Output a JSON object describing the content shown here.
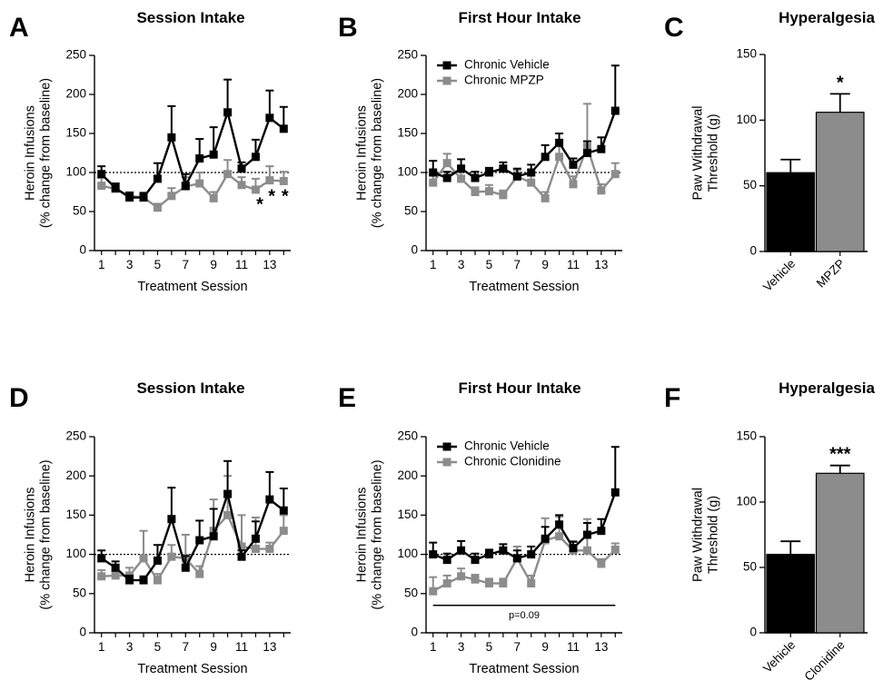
{
  "colors": {
    "vehicle": "#000000",
    "drug": "#8c8c8c"
  },
  "chart_data": [
    {
      "id": "A",
      "letter": "A",
      "type": "line",
      "title": "Session Intake",
      "ylabel": "Heroin Infusions\n(% change from baseline)",
      "xlabel": "Treatment Session",
      "ylim": [
        0,
        250
      ],
      "yticks": [
        0,
        50,
        100,
        150,
        200,
        250
      ],
      "xlim": [
        0.5,
        14.5
      ],
      "xticks": [
        1,
        3,
        5,
        7,
        9,
        11,
        13
      ],
      "reference_line": 100,
      "legend": null,
      "series": [
        {
          "key": "vehicle",
          "x": [
            1,
            2,
            3,
            4,
            5,
            6,
            7,
            8,
            9,
            10,
            11,
            12,
            13,
            14
          ],
          "y": [
            98,
            80,
            68,
            68,
            92,
            145,
            83,
            118,
            123,
            177,
            105,
            120,
            170,
            156
          ],
          "err": [
            10,
            6,
            6,
            6,
            20,
            40,
            15,
            25,
            35,
            42,
            8,
            22,
            35,
            28
          ]
        },
        {
          "key": "drug",
          "x": [
            1,
            2,
            3,
            4,
            5,
            6,
            7,
            8,
            9,
            10,
            11,
            12,
            13,
            14
          ],
          "y": [
            83,
            79,
            70,
            68,
            55,
            70,
            82,
            86,
            67,
            98,
            84,
            78,
            90,
            89
          ],
          "err": [
            10,
            7,
            5,
            5,
            5,
            10,
            12,
            14,
            8,
            18,
            10,
            14,
            18,
            12
          ]
        }
      ],
      "annotations": [
        {
          "text": "*",
          "x": 12.3,
          "y": 52
        },
        {
          "text": "*",
          "x": 13.15,
          "y": 62
        },
        {
          "text": "*",
          "x": 14.1,
          "y": 62
        }
      ]
    },
    {
      "id": "B",
      "letter": "B",
      "type": "line",
      "title": "First Hour Intake",
      "ylabel": "Heroin Infusions\n(% change from baseline)",
      "xlabel": "Treatment Session",
      "ylim": [
        0,
        250
      ],
      "yticks": [
        0,
        50,
        100,
        150,
        200,
        250
      ],
      "xlim": [
        0.5,
        14.5
      ],
      "xticks": [
        1,
        3,
        5,
        7,
        9,
        11,
        13
      ],
      "reference_line": 100,
      "legend": [
        {
          "key": "vehicle",
          "label": "Chronic Vehicle"
        },
        {
          "key": "drug",
          "label": "Chronic MPZP"
        }
      ],
      "series": [
        {
          "key": "vehicle",
          "x": [
            1,
            2,
            3,
            4,
            5,
            6,
            7,
            8,
            9,
            10,
            11,
            12,
            13,
            14
          ],
          "y": [
            100,
            93,
            105,
            93,
            100,
            105,
            95,
            100,
            120,
            138,
            110,
            125,
            130,
            179
          ],
          "err": [
            15,
            8,
            12,
            8,
            6,
            8,
            10,
            10,
            15,
            12,
            8,
            15,
            15,
            58
          ]
        },
        {
          "key": "drug",
          "x": [
            1,
            2,
            3,
            4,
            5,
            6,
            7,
            8,
            9,
            10,
            11,
            12,
            13,
            14
          ],
          "y": [
            87,
            112,
            92,
            75,
            76,
            71,
            95,
            87,
            67,
            120,
            85,
            133,
            77,
            98
          ],
          "err": [
            10,
            12,
            12,
            6,
            8,
            6,
            8,
            10,
            8,
            15,
            10,
            55,
            8,
            14
          ]
        }
      ],
      "annotations": []
    },
    {
      "id": "C",
      "letter": "C",
      "type": "bar",
      "title": "Hyperalgesia",
      "ylabel": "Paw Withdrawal\nThreshold (g)",
      "ylim": [
        0,
        150
      ],
      "yticks": [
        0,
        50,
        100,
        150
      ],
      "categories": [
        "Vehicle",
        "MPZP"
      ],
      "values": [
        60,
        106
      ],
      "err": [
        10,
        14
      ],
      "bar_keys": [
        "vehicle",
        "drug"
      ],
      "sig": "*"
    },
    {
      "id": "D",
      "letter": "D",
      "type": "line",
      "title": "Session Intake",
      "ylabel": "Heroin Infusions\n(% change from baseline)",
      "xlabel": "Treatment Session",
      "ylim": [
        0,
        250
      ],
      "yticks": [
        0,
        50,
        100,
        150,
        200,
        250
      ],
      "xlim": [
        0.5,
        14.5
      ],
      "xticks": [
        1,
        3,
        5,
        7,
        9,
        11,
        13
      ],
      "reference_line": 100,
      "legend": null,
      "series": [
        {
          "key": "vehicle",
          "x": [
            1,
            2,
            3,
            4,
            5,
            6,
            7,
            8,
            9,
            10,
            11,
            12,
            13,
            14
          ],
          "y": [
            95,
            83,
            67,
            67,
            92,
            145,
            83,
            118,
            123,
            177,
            97,
            120,
            170,
            156
          ],
          "err": [
            10,
            8,
            6,
            5,
            20,
            40,
            15,
            25,
            35,
            42,
            8,
            22,
            35,
            28
          ]
        },
        {
          "key": "drug",
          "x": [
            1,
            2,
            3,
            4,
            5,
            6,
            7,
            8,
            9,
            10,
            11,
            12,
            13,
            14
          ],
          "y": [
            72,
            73,
            73,
            95,
            67,
            97,
            95,
            75,
            130,
            150,
            110,
            107,
            107,
            130
          ],
          "err": [
            8,
            6,
            10,
            35,
            8,
            15,
            30,
            10,
            40,
            50,
            40,
            40,
            8,
            20
          ]
        }
      ],
      "annotations": []
    },
    {
      "id": "E",
      "letter": "E",
      "type": "line",
      "title": "First Hour Intake",
      "ylabel": "Heroin Infusions\n(% change from baseline)",
      "xlabel": "Treatment Session",
      "ylim": [
        0,
        250
      ],
      "yticks": [
        0,
        50,
        100,
        150,
        200,
        250
      ],
      "xlim": [
        0.5,
        14.5
      ],
      "xticks": [
        1,
        3,
        5,
        7,
        9,
        11,
        13
      ],
      "reference_line": 100,
      "legend": [
        {
          "key": "vehicle",
          "label": "Chronic Vehicle"
        },
        {
          "key": "drug",
          "label": "Chronic Clonidine"
        }
      ],
      "series": [
        {
          "key": "vehicle",
          "x": [
            1,
            2,
            3,
            4,
            5,
            6,
            7,
            8,
            9,
            10,
            11,
            12,
            13,
            14
          ],
          "y": [
            100,
            93,
            105,
            93,
            100,
            105,
            95,
            100,
            120,
            138,
            108,
            125,
            130,
            179
          ],
          "err": [
            15,
            8,
            12,
            8,
            6,
            8,
            10,
            10,
            15,
            12,
            8,
            15,
            15,
            58
          ]
        },
        {
          "key": "drug",
          "x": [
            1,
            2,
            3,
            4,
            5,
            6,
            7,
            8,
            9,
            10,
            11,
            12,
            13,
            14
          ],
          "y": [
            53,
            63,
            72,
            68,
            63,
            63,
            95,
            63,
            118,
            123,
            105,
            105,
            88,
            106
          ],
          "err": [
            18,
            10,
            10,
            6,
            6,
            6,
            15,
            10,
            28,
            25,
            12,
            40,
            6,
            8
          ]
        }
      ],
      "annotations": [],
      "bracket": {
        "x1": 1,
        "x2": 14,
        "y": 35,
        "label": "p=0.09"
      }
    },
    {
      "id": "F",
      "letter": "F",
      "type": "bar",
      "title": "Hyperalgesia",
      "ylabel": "Paw Withdrawal\nThreshold (g)",
      "ylim": [
        0,
        150
      ],
      "yticks": [
        0,
        50,
        100,
        150
      ],
      "categories": [
        "Vehicle",
        "Clonidine"
      ],
      "values": [
        60,
        122
      ],
      "err": [
        10,
        6
      ],
      "bar_keys": [
        "vehicle",
        "drug"
      ],
      "sig": "***"
    }
  ]
}
